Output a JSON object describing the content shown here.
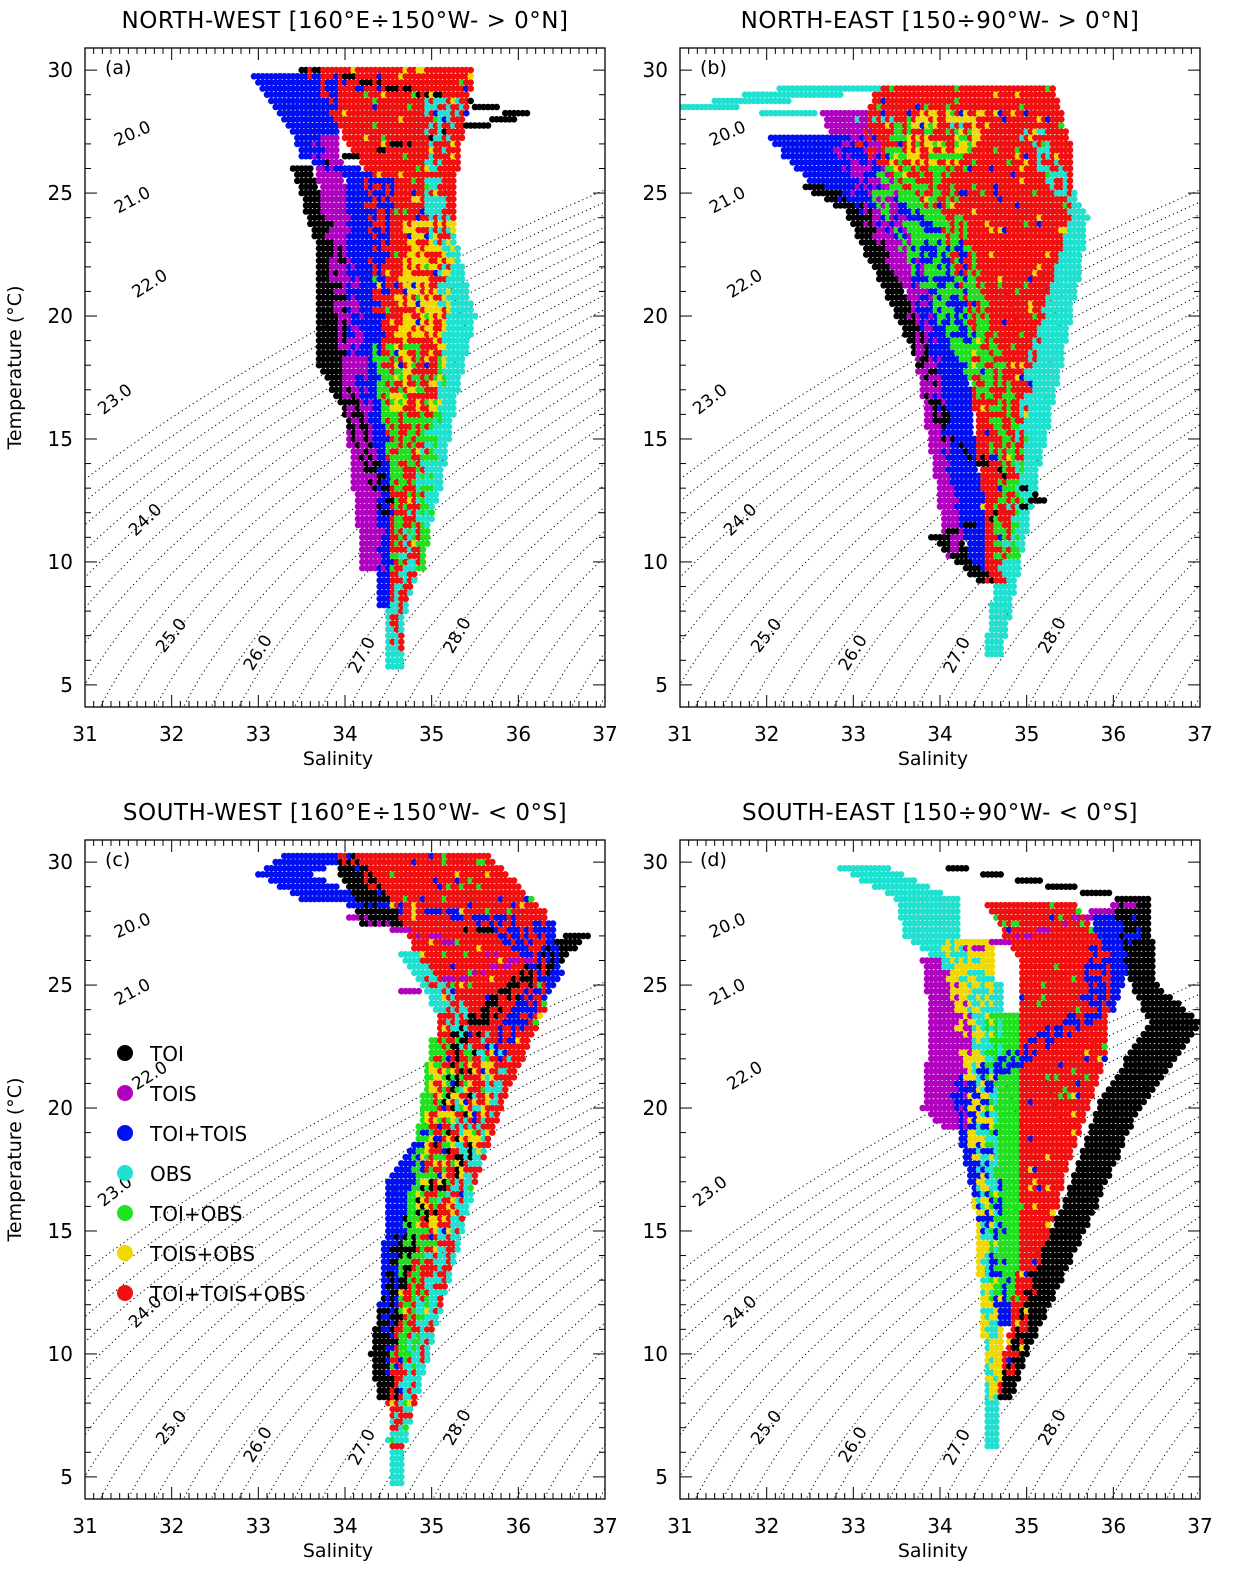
{
  "figure": {
    "legend_items": [
      {
        "label": "TOI",
        "color": "#000000"
      },
      {
        "label": "TOIS",
        "color": "#b000c0"
      },
      {
        "label": "TOI+TOIS",
        "color": "#0010f0"
      },
      {
        "label": "OBS",
        "color": "#20e0d0"
      },
      {
        "label": "TOI+OBS",
        "color": "#20e020"
      },
      {
        "label": "TOIS+OBS",
        "color": "#f0d800"
      },
      {
        "label": "TOI+TOIS+OBS",
        "color": "#f01010"
      }
    ]
  },
  "chart_data": [
    {
      "type": "scatter",
      "panel_label": "(a)",
      "title": "NORTH-WEST [160°E÷150°W- > 0°N]",
      "xlabel": "Salinity",
      "ylabel": "Temperature (°C)",
      "xlim": [
        31,
        37
      ],
      "ylim": [
        4.1,
        30.9
      ],
      "xticks": [
        "31",
        "32",
        "33",
        "34",
        "35",
        "36",
        "37"
      ],
      "yticks": [
        "5",
        "10",
        "15",
        "20",
        "25",
        "30"
      ],
      "density_contours": [
        "20.0",
        "21.0",
        "22.0",
        "23.0",
        "24.0",
        "25.0",
        "26.0",
        "27.0",
        "28.0"
      ],
      "point_spacing": {
        "salinity": 0.05,
        "temperature": 0.25
      },
      "class_regions": [
        {
          "class": "TOI+TOIS+OBS",
          "upper_boundary": [
            [
              30.2,
              33.5,
              35.5
            ],
            [
              26,
              34.2,
              35.3
            ],
            [
              22,
              34.3,
              35.2
            ],
            [
              18,
              34.4,
              35.1
            ],
            [
              14,
              34.5,
              34.95
            ],
            [
              10,
              34.5,
              34.85
            ],
            [
              8.5,
              34.5,
              34.7
            ],
            [
              6,
              34.55,
              34.65
            ]
          ]
        },
        {
          "class": "TOI+TOIS",
          "upper_boundary": [
            [
              29.8,
              32.9,
              33.9
            ],
            [
              27.5,
              33.4,
              33.9
            ],
            [
              26.5,
              33.5,
              33.7
            ],
            [
              25.5,
              34.0,
              34.6
            ],
            [
              22,
              34.0,
              34.5
            ],
            [
              19,
              34.0,
              34.45
            ],
            [
              16.5,
              34.2,
              34.4
            ],
            [
              14,
              34.4,
              34.55
            ],
            [
              10,
              34.35,
              34.5
            ],
            [
              8,
              34.4,
              34.5
            ]
          ]
        },
        {
          "class": "TOI",
          "upper_boundary": [
            [
              30.2,
              33.2,
              33.5
            ],
            [
              28.2,
              35.9,
              36.2
            ],
            [
              26,
              33.4,
              33.6
            ],
            [
              22.5,
              33.7,
              34.0
            ],
            [
              18,
              33.7,
              34.0
            ],
            [
              16,
              34.0,
              34.2
            ],
            [
              12,
              34.4,
              34.6
            ],
            [
              11.5,
              34.9,
              35.0
            ]
          ]
        },
        {
          "class": "OBS",
          "upper_boundary": [
            [
              29,
              34.9,
              35.4
            ],
            [
              25.5,
              34.9,
              35.1
            ],
            [
              20,
              35.1,
              35.5
            ],
            [
              17,
              35.0,
              35.3
            ],
            [
              13,
              34.8,
              35.1
            ],
            [
              8,
              34.5,
              34.7
            ],
            [
              5.5,
              34.5,
              34.65
            ]
          ]
        },
        {
          "class": "TOIS",
          "upper_boundary": [
            [
              27.5,
              33.6,
              33.9
            ],
            [
              23,
              33.8,
              34.1
            ],
            [
              20,
              33.9,
              34.2
            ],
            [
              9.5,
              34.2,
              34.5
            ]
          ]
        },
        {
          "class": "TOI+OBS",
          "upper_boundary": [
            [
              19,
              34.3,
              35.2
            ],
            [
              12,
              34.6,
              35.0
            ],
            [
              9.5,
              34.5,
              34.9
            ]
          ]
        },
        {
          "class": "TOIS+OBS",
          "upper_boundary": [
            [
              24,
              34.7,
              35.3
            ],
            [
              16,
              34.5,
              35.1
            ]
          ]
        }
      ]
    },
    {
      "type": "scatter",
      "panel_label": "(b)",
      "title": "NORTH-EAST [150÷90°W- > 0°N]",
      "xlabel": "Salinity",
      "ylabel": "",
      "xlim": [
        31,
        37
      ],
      "ylim": [
        4.1,
        30.9
      ],
      "xticks": [
        "31",
        "32",
        "33",
        "34",
        "35",
        "36",
        "37"
      ],
      "yticks": [
        "5",
        "10",
        "15",
        "20",
        "25",
        "30"
      ],
      "density_contours": [
        "20.0",
        "21.0",
        "22.0",
        "23.0",
        "24.0",
        "25.0",
        "26.0",
        "27.0",
        "28.0"
      ],
      "point_spacing": {
        "salinity": 0.05,
        "temperature": 0.25
      },
      "class_regions": [
        {
          "class": "TOI+TOIS+OBS",
          "upper_boundary": [
            [
              29.5,
              33.3,
              35.3
            ],
            [
              27,
              33.0,
              35.5
            ],
            [
              24,
              34.0,
              35.5
            ],
            [
              20,
              34.3,
              35.2
            ],
            [
              16,
              34.4,
              35.0
            ],
            [
              12,
              34.5,
              34.9
            ],
            [
              9,
              34.55,
              34.75
            ]
          ]
        },
        {
          "class": "TOI+TOIS",
          "upper_boundary": [
            [
              27.5,
              32.0,
              33.3
            ],
            [
              26.5,
              32.2,
              33.4
            ],
            [
              25.5,
              32.5,
              33.2
            ],
            [
              23,
              33.6,
              34.3
            ],
            [
              19,
              33.8,
              34.3
            ],
            [
              15,
              34.0,
              34.4
            ],
            [
              12,
              34.2,
              34.5
            ],
            [
              9.5,
              34.4,
              34.5
            ]
          ]
        },
        {
          "class": "TOI",
          "upper_boundary": [
            [
              25.5,
              32.3,
              32.6
            ],
            [
              24.3,
              32.9,
              33.2
            ],
            [
              18.5,
              33.7,
              33.9
            ],
            [
              15,
              34.0,
              34.2
            ],
            [
              11,
              33.9,
              34.2
            ],
            [
              10,
              34.2,
              34.4
            ],
            [
              12.5,
              35.0,
              35.2
            ],
            [
              9,
              34.5,
              34.7
            ]
          ]
        },
        {
          "class": "OBS",
          "upper_boundary": [
            [
              29.5,
              32.5,
              34.0
            ],
            [
              28.5,
              31.0,
              31.7
            ],
            [
              27.5,
              34.8,
              35.2
            ],
            [
              24,
              35.5,
              35.7
            ],
            [
              21.5,
              35.3,
              35.6
            ],
            [
              18,
              35.0,
              35.4
            ],
            [
              13,
              34.8,
              35.1
            ],
            [
              6,
              34.5,
              34.7
            ]
          ]
        },
        {
          "class": "TOIS",
          "upper_boundary": [
            [
              28.5,
              32.6,
              33.2
            ],
            [
              24,
              33.1,
              33.6
            ],
            [
              21,
              33.6,
              33.9
            ],
            [
              10,
              34.1,
              34.3
            ]
          ]
        },
        {
          "class": "TOI+OBS",
          "upper_boundary": [
            [
              28,
              33.5,
              34.5
            ],
            [
              25,
              33.2,
              34.2
            ],
            [
              15,
              34.7,
              35.0
            ],
            [
              10,
              34.6,
              34.9
            ]
          ]
        },
        {
          "class": "TOIS+OBS",
          "upper_boundary": [
            [
              28.5,
              33.8,
              34.6
            ],
            [
              26,
              33.4,
              34.3
            ]
          ]
        }
      ]
    },
    {
      "type": "scatter",
      "panel_label": "(c)",
      "title": "SOUTH-WEST [160°E÷150°W- < 0°S]",
      "xlabel": "Salinity",
      "ylabel": "Temperature (°C)",
      "xlim": [
        31,
        37
      ],
      "ylim": [
        4.1,
        30.9
      ],
      "xticks": [
        "31",
        "32",
        "33",
        "34",
        "35",
        "36",
        "37"
      ],
      "yticks": [
        "5",
        "10",
        "15",
        "20",
        "25",
        "30"
      ],
      "density_contours": [
        "20.0",
        "21.0",
        "22.0",
        "23.0",
        "24.0",
        "25.0",
        "26.0",
        "27.0",
        "28.0"
      ],
      "point_spacing": {
        "salinity": 0.05,
        "temperature": 0.25
      },
      "class_regions": [
        {
          "class": "TOI+TOIS+OBS",
          "upper_boundary": [
            [
              30.5,
              33.8,
              35.6
            ],
            [
              28,
              34.6,
              36.3
            ],
            [
              24,
              35.1,
              36.3
            ],
            [
              20,
              35.0,
              35.8
            ],
            [
              16,
              34.9,
              35.4
            ],
            [
              12,
              34.6,
              35.1
            ],
            [
              8,
              34.5,
              34.8
            ],
            [
              6,
              34.55,
              34.65
            ]
          ]
        },
        {
          "class": "TOI+TOIS",
          "upper_boundary": [
            [
              30.5,
              33.4,
              34.2
            ],
            [
              29.5,
              33.0,
              33.6
            ],
            [
              28.5,
              33.5,
              34.2
            ],
            [
              27.5,
              35.6,
              36.4
            ],
            [
              25.5,
              36.2,
              36.5
            ],
            [
              17,
              34.5,
              34.8
            ],
            [
              12,
              34.4,
              34.6
            ],
            [
              9,
              34.5,
              34.65
            ]
          ]
        },
        {
          "class": "TOI",
          "upper_boundary": [
            [
              30.5,
              33.8,
              34.1
            ],
            [
              27,
              36.5,
              36.8
            ],
            [
              27.5,
              34.2,
              34.7
            ],
            [
              23,
              35.2,
              35.6
            ],
            [
              18,
              35.0,
              35.5
            ],
            [
              14,
              34.5,
              34.8
            ],
            [
              10,
              34.3,
              34.6
            ],
            [
              8,
              34.4,
              34.6
            ]
          ]
        },
        {
          "class": "OBS",
          "upper_boundary": [
            [
              26.5,
              34.6,
              34.8
            ],
            [
              22,
              35.4,
              35.9
            ],
            [
              6.5,
              34.5,
              34.7
            ],
            [
              4.5,
              34.55,
              34.65
            ]
          ]
        },
        {
          "class": "TOIS",
          "upper_boundary": [
            [
              28,
              33.8,
              34.0
            ],
            [
              26,
              35.8,
              36.2
            ],
            [
              24.5,
              34.4,
              34.6
            ]
          ]
        },
        {
          "class": "TOI+OBS",
          "upper_boundary": [
            [
              23,
              35.0,
              35.5
            ],
            [
              13,
              34.6,
              35.0
            ],
            [
              9,
              34.5,
              34.8
            ]
          ]
        },
        {
          "class": "TOIS+OBS",
          "upper_boundary": [
            [
              22,
              35.0,
              35.8
            ],
            [
              15,
              34.8,
              35.2
            ]
          ]
        }
      ]
    },
    {
      "type": "scatter",
      "panel_label": "(d)",
      "title": "SOUTH-EAST [150÷90°W- < 0°S]",
      "xlabel": "Salinity",
      "ylabel": "",
      "xlim": [
        31,
        37
      ],
      "ylim": [
        4.1,
        30.9
      ],
      "xticks": [
        "31",
        "32",
        "33",
        "34",
        "35",
        "36",
        "37"
      ],
      "yticks": [
        "5",
        "10",
        "15",
        "20",
        "25",
        "30"
      ],
      "density_contours": [
        "20.0",
        "21.0",
        "22.0",
        "23.0",
        "24.0",
        "25.0",
        "26.0",
        "27.0",
        "28.0"
      ],
      "point_spacing": {
        "salinity": 0.05,
        "temperature": 0.25
      },
      "class_regions": [
        {
          "class": "TOI+TOIS+OBS",
          "upper_boundary": [
            [
              28.5,
              34.5,
              35.5
            ],
            [
              26,
              34.9,
              36.0
            ],
            [
              22,
              34.9,
              35.9
            ],
            [
              18,
              34.9,
              35.5
            ],
            [
              14,
              34.9,
              35.2
            ],
            [
              11,
              34.8,
              35.0
            ],
            [
              8,
              34.6,
              34.8
            ]
          ]
        },
        {
          "class": "TOI+TOIS",
          "upper_boundary": [
            [
              28,
              35.8,
              36.4
            ],
            [
              24,
              35.6,
              36.0
            ],
            [
              21,
              34.1,
              34.6
            ],
            [
              11,
              34.7,
              34.85
            ]
          ]
        },
        {
          "class": "TOI",
          "upper_boundary": [
            [
              30,
              33.7,
              33.9
            ],
            [
              28.5,
              36.0,
              36.4
            ],
            [
              25,
              36.2,
              36.5
            ],
            [
              23.5,
              36.4,
              37.0
            ],
            [
              20,
              35.8,
              36.3
            ],
            [
              16,
              35.4,
              35.8
            ],
            [
              13,
              35.0,
              35.4
            ],
            [
              10,
              34.8,
              35.0
            ],
            [
              8,
              34.65,
              34.8
            ]
          ]
        },
        {
          "class": "OBS",
          "upper_boundary": [
            [
              29.8,
              32.8,
              33.4
            ],
            [
              28.5,
              33.5,
              34.2
            ],
            [
              27,
              33.6,
              34.2
            ],
            [
              25,
              34.3,
              34.7
            ],
            [
              21,
              34.4,
              34.7
            ],
            [
              6,
              34.55,
              34.65
            ]
          ]
        },
        {
          "class": "TOIS",
          "upper_boundary": [
            [
              28.5,
              33.4,
              33.9
            ],
            [
              26,
              33.8,
              34.1
            ],
            [
              23.5,
              33.9,
              34.4
            ],
            [
              20,
              33.8,
              34.3
            ],
            [
              19,
              34.1,
              34.4
            ],
            [
              28.5,
              36.2,
              36.5
            ]
          ]
        },
        {
          "class": "TOI+OBS",
          "upper_boundary": [
            [
              24,
              34.5,
              34.9
            ],
            [
              12,
              34.6,
              34.9
            ]
          ]
        },
        {
          "class": "TOIS+OBS",
          "upper_boundary": [
            [
              27,
              34.0,
              34.6
            ],
            [
              21,
              34.3,
              34.6
            ],
            [
              8,
              34.55,
              34.75
            ]
          ]
        }
      ]
    }
  ]
}
